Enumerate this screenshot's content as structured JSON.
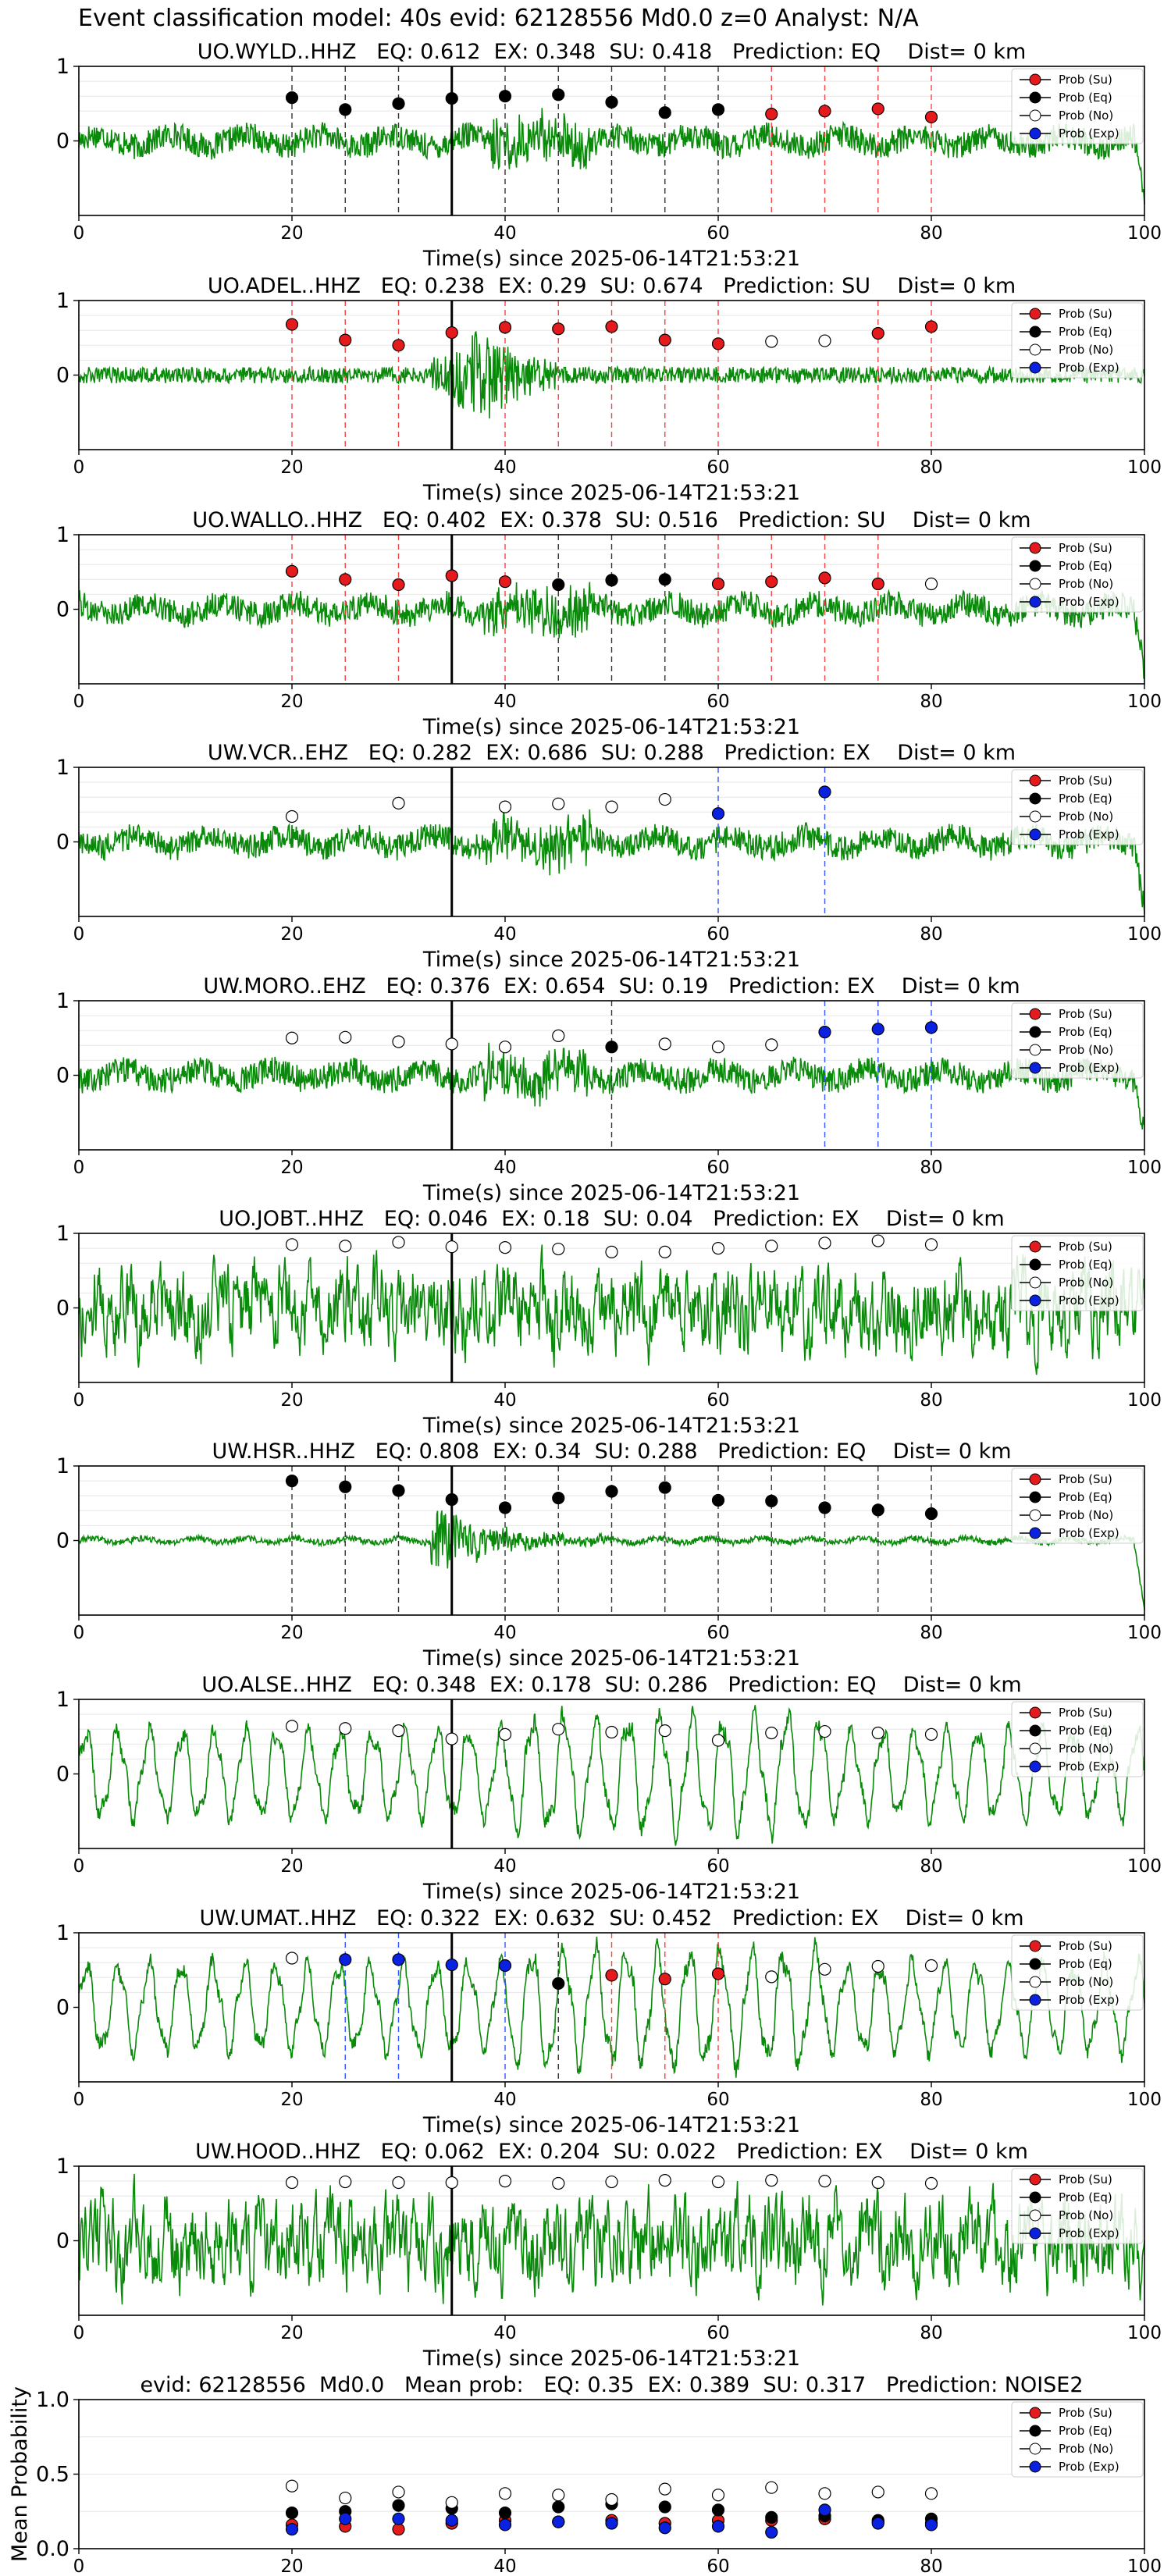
{
  "figure_title": "Event classification model: 40s evid: 62128556 Md0.0 z=0 Analyst: N/A",
  "legend_labels": [
    "Prob (Su)",
    "Prob (Eq)",
    "Prob (No)",
    "Prob (Exp)"
  ],
  "colors": {
    "su": "#e41a1c",
    "eq": "#000000",
    "no": "#ffffff",
    "exp": "#0a22e0",
    "trace": "#0a8a0a",
    "vline": "#000000"
  },
  "chart_data": [
    {
      "type": "line",
      "title": "UO.WYLD..HHZ   EQ: 0.612  EX: 0.348  SU: 0.418   Prediction: EQ    Dist= 0 km",
      "xlabel": "Time(s) since 2025-06-14T21:53:21",
      "x_ticks": [
        "0",
        "20",
        "40",
        "60",
        "80",
        "100"
      ],
      "y_ticks": [
        "1",
        "0"
      ],
      "xlim": [
        0,
        100
      ],
      "ylim": [
        -1,
        1
      ],
      "event_time": 35,
      "noise": "medium",
      "points": [
        {
          "t": 20,
          "p": 0.58,
          "c": "eq"
        },
        {
          "t": 25,
          "p": 0.42,
          "c": "eq"
        },
        {
          "t": 30,
          "p": 0.5,
          "c": "eq"
        },
        {
          "t": 35,
          "p": 0.57,
          "c": "eq"
        },
        {
          "t": 40,
          "p": 0.6,
          "c": "eq"
        },
        {
          "t": 45,
          "p": 0.62,
          "c": "eq"
        },
        {
          "t": 50,
          "p": 0.52,
          "c": "eq"
        },
        {
          "t": 55,
          "p": 0.38,
          "c": "eq"
        },
        {
          "t": 60,
          "p": 0.42,
          "c": "eq"
        },
        {
          "t": 65,
          "p": 0.36,
          "c": "su"
        },
        {
          "t": 70,
          "p": 0.4,
          "c": "su"
        },
        {
          "t": 75,
          "p": 0.43,
          "c": "su"
        },
        {
          "t": 80,
          "p": 0.32,
          "c": "su"
        }
      ]
    },
    {
      "type": "line",
      "title": "UO.ADEL..HHZ   EQ: 0.238  EX: 0.29  SU: 0.674   Prediction: SU    Dist= 0 km",
      "xlabel": "Time(s) since 2025-06-14T21:53:21",
      "x_ticks": [
        "0",
        "20",
        "40",
        "60",
        "80",
        "100"
      ],
      "y_ticks": [
        "1",
        "0"
      ],
      "xlim": [
        0,
        100
      ],
      "ylim": [
        -1,
        1
      ],
      "event_time": 35,
      "noise": "burst",
      "points": [
        {
          "t": 20,
          "p": 0.68,
          "c": "su"
        },
        {
          "t": 25,
          "p": 0.47,
          "c": "su"
        },
        {
          "t": 30,
          "p": 0.4,
          "c": "su"
        },
        {
          "t": 35,
          "p": 0.57,
          "c": "su"
        },
        {
          "t": 40,
          "p": 0.64,
          "c": "su"
        },
        {
          "t": 45,
          "p": 0.62,
          "c": "su"
        },
        {
          "t": 50,
          "p": 0.65,
          "c": "su"
        },
        {
          "t": 55,
          "p": 0.47,
          "c": "su"
        },
        {
          "t": 60,
          "p": 0.42,
          "c": "su"
        },
        {
          "t": 65,
          "p": 0.45,
          "c": "no"
        },
        {
          "t": 70,
          "p": 0.46,
          "c": "no"
        },
        {
          "t": 75,
          "p": 0.56,
          "c": "su"
        },
        {
          "t": 80,
          "p": 0.65,
          "c": "su"
        }
      ]
    },
    {
      "type": "line",
      "title": "UO.WALLO..HHZ   EQ: 0.402  EX: 0.378  SU: 0.516   Prediction: SU    Dist= 0 km",
      "xlabel": "Time(s) since 2025-06-14T21:53:21",
      "x_ticks": [
        "0",
        "20",
        "40",
        "60",
        "80",
        "100"
      ],
      "y_ticks": [
        "1",
        "0"
      ],
      "xlim": [
        0,
        100
      ],
      "ylim": [
        -1,
        1
      ],
      "event_time": 35,
      "noise": "medium",
      "points": [
        {
          "t": 20,
          "p": 0.51,
          "c": "su"
        },
        {
          "t": 25,
          "p": 0.4,
          "c": "su"
        },
        {
          "t": 30,
          "p": 0.33,
          "c": "su"
        },
        {
          "t": 35,
          "p": 0.45,
          "c": "su"
        },
        {
          "t": 40,
          "p": 0.37,
          "c": "su"
        },
        {
          "t": 45,
          "p": 0.33,
          "c": "eq"
        },
        {
          "t": 50,
          "p": 0.39,
          "c": "eq"
        },
        {
          "t": 55,
          "p": 0.4,
          "c": "eq"
        },
        {
          "t": 60,
          "p": 0.34,
          "c": "su"
        },
        {
          "t": 65,
          "p": 0.37,
          "c": "su"
        },
        {
          "t": 70,
          "p": 0.42,
          "c": "su"
        },
        {
          "t": 75,
          "p": 0.34,
          "c": "su"
        },
        {
          "t": 80,
          "p": 0.34,
          "c": "no"
        }
      ]
    },
    {
      "type": "line",
      "title": "UW.VCR..EHZ   EQ: 0.282  EX: 0.686  SU: 0.288   Prediction: EX    Dist= 0 km",
      "xlabel": "Time(s) since 2025-06-14T21:53:21",
      "x_ticks": [
        "0",
        "20",
        "40",
        "60",
        "80",
        "100"
      ],
      "y_ticks": [
        "1",
        "0"
      ],
      "xlim": [
        0,
        100
      ],
      "ylim": [
        -1,
        1
      ],
      "event_time": 35,
      "noise": "medium",
      "points": [
        {
          "t": 20,
          "p": 0.34,
          "c": "no"
        },
        {
          "t": 30,
          "p": 0.52,
          "c": "no"
        },
        {
          "t": 40,
          "p": 0.47,
          "c": "no"
        },
        {
          "t": 45,
          "p": 0.51,
          "c": "no"
        },
        {
          "t": 50,
          "p": 0.47,
          "c": "no"
        },
        {
          "t": 55,
          "p": 0.57,
          "c": "no"
        },
        {
          "t": 60,
          "p": 0.38,
          "c": "exp"
        },
        {
          "t": 70,
          "p": 0.67,
          "c": "exp"
        }
      ]
    },
    {
      "type": "line",
      "title": "UW.MORO..EHZ   EQ: 0.376  EX: 0.654  SU: 0.19   Prediction: EX    Dist= 0 km",
      "xlabel": "Time(s) since 2025-06-14T21:53:21",
      "x_ticks": [
        "0",
        "20",
        "40",
        "60",
        "80",
        "100"
      ],
      "y_ticks": [
        "1",
        "0"
      ],
      "xlim": [
        0,
        100
      ],
      "ylim": [
        -1,
        1
      ],
      "event_time": 35,
      "noise": "medium",
      "points": [
        {
          "t": 20,
          "p": 0.5,
          "c": "no"
        },
        {
          "t": 25,
          "p": 0.51,
          "c": "no"
        },
        {
          "t": 30,
          "p": 0.45,
          "c": "no"
        },
        {
          "t": 35,
          "p": 0.42,
          "c": "no"
        },
        {
          "t": 40,
          "p": 0.38,
          "c": "no"
        },
        {
          "t": 45,
          "p": 0.53,
          "c": "no"
        },
        {
          "t": 50,
          "p": 0.38,
          "c": "eq"
        },
        {
          "t": 55,
          "p": 0.42,
          "c": "no"
        },
        {
          "t": 60,
          "p": 0.38,
          "c": "no"
        },
        {
          "t": 65,
          "p": 0.41,
          "c": "no"
        },
        {
          "t": 70,
          "p": 0.58,
          "c": "exp"
        },
        {
          "t": 75,
          "p": 0.62,
          "c": "exp"
        },
        {
          "t": 80,
          "p": 0.64,
          "c": "exp"
        }
      ]
    },
    {
      "type": "line",
      "title": "UO.JOBT..HHZ   EQ: 0.046  EX: 0.18  SU: 0.04   Prediction: EX    Dist= 0 km",
      "xlabel": "Time(s) since 2025-06-14T21:53:21",
      "x_ticks": [
        "0",
        "20",
        "40",
        "60",
        "80",
        "100"
      ],
      "y_ticks": [
        "1",
        "0"
      ],
      "xlim": [
        0,
        100
      ],
      "ylim": [
        -1,
        1
      ],
      "event_time": 35,
      "noise": "high",
      "points": [
        {
          "t": 20,
          "p": 0.85,
          "c": "no"
        },
        {
          "t": 25,
          "p": 0.83,
          "c": "no"
        },
        {
          "t": 30,
          "p": 0.88,
          "c": "no"
        },
        {
          "t": 35,
          "p": 0.82,
          "c": "no"
        },
        {
          "t": 40,
          "p": 0.81,
          "c": "no"
        },
        {
          "t": 45,
          "p": 0.79,
          "c": "no"
        },
        {
          "t": 50,
          "p": 0.75,
          "c": "no"
        },
        {
          "t": 55,
          "p": 0.75,
          "c": "no"
        },
        {
          "t": 60,
          "p": 0.8,
          "c": "no"
        },
        {
          "t": 65,
          "p": 0.83,
          "c": "no"
        },
        {
          "t": 70,
          "p": 0.87,
          "c": "no"
        },
        {
          "t": 75,
          "p": 0.9,
          "c": "no"
        },
        {
          "t": 80,
          "p": 0.85,
          "c": "no"
        }
      ]
    },
    {
      "type": "line",
      "title": "UW.HSR..HHZ   EQ: 0.808  EX: 0.34  SU: 0.288   Prediction: EQ    Dist= 0 km",
      "xlabel": "Time(s) since 2025-06-14T21:53:21",
      "x_ticks": [
        "0",
        "20",
        "40",
        "60",
        "80",
        "100"
      ],
      "y_ticks": [
        "1",
        "0"
      ],
      "xlim": [
        0,
        100
      ],
      "ylim": [
        -1,
        1
      ],
      "event_time": 35,
      "noise": "low",
      "points": [
        {
          "t": 20,
          "p": 0.8,
          "c": "eq"
        },
        {
          "t": 25,
          "p": 0.72,
          "c": "eq"
        },
        {
          "t": 30,
          "p": 0.67,
          "c": "eq"
        },
        {
          "t": 35,
          "p": 0.55,
          "c": "eq"
        },
        {
          "t": 40,
          "p": 0.44,
          "c": "eq"
        },
        {
          "t": 45,
          "p": 0.57,
          "c": "eq"
        },
        {
          "t": 50,
          "p": 0.66,
          "c": "eq"
        },
        {
          "t": 55,
          "p": 0.71,
          "c": "eq"
        },
        {
          "t": 60,
          "p": 0.54,
          "c": "eq"
        },
        {
          "t": 65,
          "p": 0.53,
          "c": "eq"
        },
        {
          "t": 70,
          "p": 0.44,
          "c": "eq"
        },
        {
          "t": 75,
          "p": 0.41,
          "c": "eq"
        },
        {
          "t": 80,
          "p": 0.36,
          "c": "eq"
        }
      ]
    },
    {
      "type": "line",
      "title": "UO.ALSE..HHZ   EQ: 0.348  EX: 0.178  SU: 0.286   Prediction: EQ    Dist= 0 km",
      "xlabel": "Time(s) since 2025-06-14T21:53:21",
      "x_ticks": [
        "0",
        "20",
        "40",
        "60",
        "80",
        "100"
      ],
      "y_ticks": [
        "1",
        "0"
      ],
      "xlim": [
        0,
        100
      ],
      "ylim": [
        -1,
        1
      ],
      "event_time": 35,
      "noise": "wave",
      "points": [
        {
          "t": 20,
          "p": 0.64,
          "c": "no"
        },
        {
          "t": 25,
          "p": 0.61,
          "c": "no"
        },
        {
          "t": 30,
          "p": 0.58,
          "c": "no"
        },
        {
          "t": 35,
          "p": 0.47,
          "c": "no"
        },
        {
          "t": 40,
          "p": 0.53,
          "c": "no"
        },
        {
          "t": 45,
          "p": 0.6,
          "c": "no"
        },
        {
          "t": 50,
          "p": 0.56,
          "c": "no"
        },
        {
          "t": 55,
          "p": 0.58,
          "c": "no"
        },
        {
          "t": 60,
          "p": 0.45,
          "c": "no"
        },
        {
          "t": 65,
          "p": 0.55,
          "c": "no"
        },
        {
          "t": 70,
          "p": 0.57,
          "c": "no"
        },
        {
          "t": 75,
          "p": 0.55,
          "c": "no"
        },
        {
          "t": 80,
          "p": 0.53,
          "c": "no"
        }
      ]
    },
    {
      "type": "line",
      "title": "UW.UMAT..HHZ   EQ: 0.322  EX: 0.632  SU: 0.452   Prediction: EX    Dist= 0 km",
      "xlabel": "Time(s) since 2025-06-14T21:53:21",
      "x_ticks": [
        "0",
        "20",
        "40",
        "60",
        "80",
        "100"
      ],
      "y_ticks": [
        "1",
        "0"
      ],
      "xlim": [
        0,
        100
      ],
      "ylim": [
        -1,
        1
      ],
      "event_time": 35,
      "noise": "wave",
      "points": [
        {
          "t": 20,
          "p": 0.66,
          "c": "no"
        },
        {
          "t": 25,
          "p": 0.64,
          "c": "exp"
        },
        {
          "t": 30,
          "p": 0.64,
          "c": "exp"
        },
        {
          "t": 35,
          "p": 0.57,
          "c": "exp"
        },
        {
          "t": 40,
          "p": 0.56,
          "c": "exp"
        },
        {
          "t": 45,
          "p": 0.32,
          "c": "eq"
        },
        {
          "t": 50,
          "p": 0.43,
          "c": "su"
        },
        {
          "t": 55,
          "p": 0.38,
          "c": "su"
        },
        {
          "t": 60,
          "p": 0.45,
          "c": "su"
        },
        {
          "t": 65,
          "p": 0.41,
          "c": "no"
        },
        {
          "t": 70,
          "p": 0.51,
          "c": "no"
        },
        {
          "t": 75,
          "p": 0.55,
          "c": "no"
        },
        {
          "t": 80,
          "p": 0.56,
          "c": "no"
        }
      ]
    },
    {
      "type": "line",
      "title": "UW.HOOD..HHZ   EQ: 0.062  EX: 0.204  SU: 0.022   Prediction: EX    Dist= 0 km",
      "xlabel": "Time(s) since 2025-06-14T21:53:21",
      "x_ticks": [
        "0",
        "20",
        "40",
        "60",
        "80",
        "100"
      ],
      "y_ticks": [
        "1",
        "0"
      ],
      "xlim": [
        0,
        100
      ],
      "ylim": [
        -1,
        1
      ],
      "event_time": 35,
      "noise": "high",
      "points": [
        {
          "t": 20,
          "p": 0.78,
          "c": "no"
        },
        {
          "t": 25,
          "p": 0.79,
          "c": "no"
        },
        {
          "t": 30,
          "p": 0.78,
          "c": "no"
        },
        {
          "t": 35,
          "p": 0.78,
          "c": "no"
        },
        {
          "t": 40,
          "p": 0.8,
          "c": "no"
        },
        {
          "t": 45,
          "p": 0.77,
          "c": "no"
        },
        {
          "t": 50,
          "p": 0.79,
          "c": "no"
        },
        {
          "t": 55,
          "p": 0.81,
          "c": "no"
        },
        {
          "t": 60,
          "p": 0.79,
          "c": "no"
        },
        {
          "t": 65,
          "p": 0.81,
          "c": "no"
        },
        {
          "t": 70,
          "p": 0.8,
          "c": "no"
        },
        {
          "t": 75,
          "p": 0.78,
          "c": "no"
        },
        {
          "t": 80,
          "p": 0.77,
          "c": "no"
        }
      ]
    },
    {
      "type": "scatter",
      "title": "evid: 62128556  Md0.0   Mean prob:   EQ: 0.35  EX: 0.389  SU: 0.317   Prediction: NOISE2",
      "ylabel": "Mean Probability",
      "x_ticks": [
        "0",
        "20",
        "40",
        "60",
        "80",
        "100"
      ],
      "y_ticks": [
        "1.0",
        "0.5",
        "0.0"
      ],
      "xlim": [
        0,
        100
      ],
      "ylim": [
        0,
        1
      ],
      "grid": true,
      "x": [
        20,
        25,
        30,
        35,
        40,
        45,
        50,
        55,
        60,
        65,
        70,
        75,
        80
      ],
      "series": [
        {
          "name": "Prob (Su)",
          "c": "su",
          "values": [
            0.16,
            0.15,
            0.13,
            0.17,
            0.19,
            0.18,
            0.19,
            0.17,
            0.19,
            0.19,
            0.2,
            0.18,
            0.17
          ]
        },
        {
          "name": "Prob (Eq)",
          "c": "eq",
          "values": [
            0.24,
            0.25,
            0.29,
            0.27,
            0.24,
            0.28,
            0.3,
            0.28,
            0.26,
            0.21,
            0.22,
            0.19,
            0.2
          ]
        },
        {
          "name": "Prob (No)",
          "c": "no",
          "values": [
            0.42,
            0.34,
            0.38,
            0.31,
            0.37,
            0.36,
            0.33,
            0.4,
            0.36,
            0.41,
            0.37,
            0.38,
            0.37
          ]
        },
        {
          "name": "Prob (Exp)",
          "c": "exp",
          "values": [
            0.13,
            0.2,
            0.2,
            0.19,
            0.16,
            0.18,
            0.17,
            0.14,
            0.15,
            0.11,
            0.26,
            0.17,
            0.16
          ]
        }
      ]
    }
  ]
}
